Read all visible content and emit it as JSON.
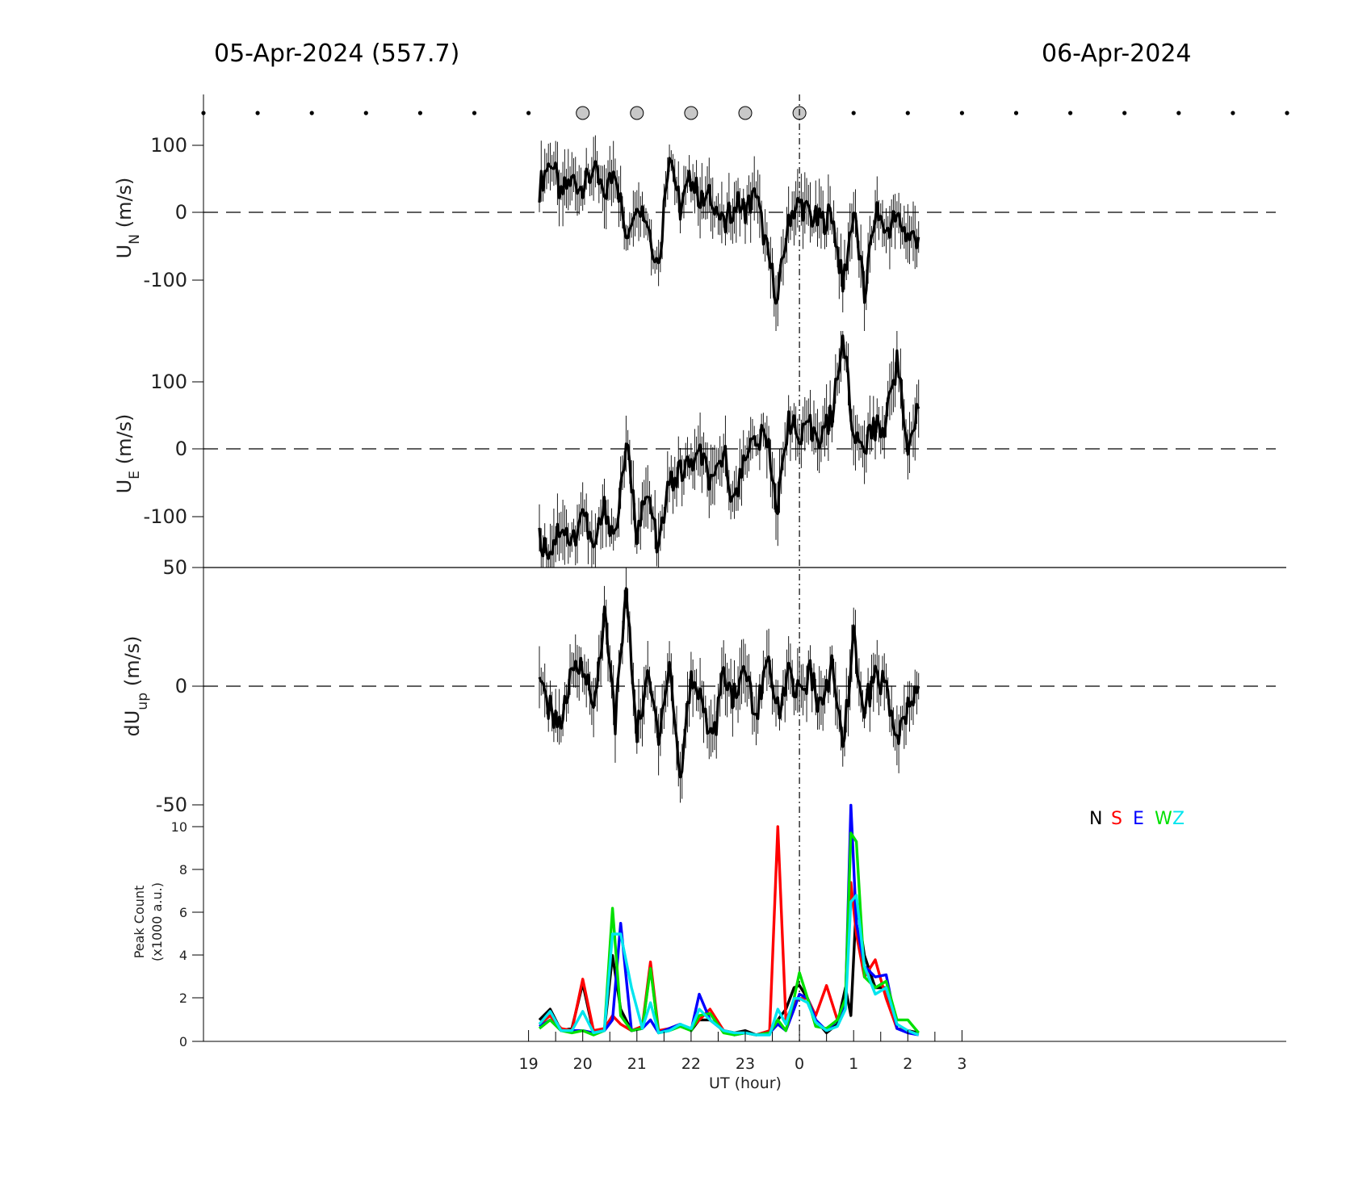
{
  "title_left": "05-Apr-2024 (557.7)",
  "title_right": "06-Apr-2024",
  "colors": {
    "N": "#000000",
    "S": "#ff0000",
    "E": "#0000ff",
    "W": "#00e000",
    "Z": "#00e5ee"
  },
  "chart_data": [
    {
      "type": "line",
      "ylabel": "U_N (m/s)",
      "ylim": [
        -175,
        165
      ],
      "yticks": [
        "100",
        "0",
        "-100"
      ],
      "x": [
        19.2,
        19.4,
        19.6,
        19.8,
        20.0,
        20.2,
        20.4,
        20.6,
        20.8,
        21.0,
        21.2,
        21.4,
        21.6,
        21.8,
        22.0,
        22.2,
        22.4,
        22.6,
        22.8,
        23.0,
        23.2,
        23.4,
        23.6,
        23.8,
        24.0,
        24.2,
        24.4,
        24.6,
        24.8,
        25.0,
        25.2,
        25.4,
        25.6,
        25.8,
        26.0,
        26.2
      ],
      "y": [
        30,
        75,
        20,
        45,
        30,
        55,
        20,
        60,
        -40,
        20,
        -20,
        -85,
        90,
        0,
        45,
        10,
        20,
        -30,
        10,
        0,
        20,
        -60,
        -130,
        -10,
        10,
        -10,
        -20,
        -5,
        -110,
        0,
        -125,
        0,
        -30,
        -10,
        -40,
        -40
      ]
    },
    {
      "type": "line",
      "ylabel": "U_E (m/s)",
      "ylim": [
        -175,
        175
      ],
      "yticks": [
        "100",
        "0",
        "-100"
      ],
      "x": [
        19.2,
        19.4,
        19.6,
        19.8,
        20.0,
        20.2,
        20.4,
        20.6,
        20.8,
        21.0,
        21.2,
        21.4,
        21.6,
        21.8,
        22.0,
        22.2,
        22.4,
        22.6,
        22.8,
        23.0,
        23.2,
        23.4,
        23.6,
        23.8,
        24.0,
        24.2,
        24.4,
        24.6,
        24.8,
        25.0,
        25.2,
        25.4,
        25.6,
        25.8,
        26.0,
        26.2
      ],
      "y": [
        -135,
        -150,
        -110,
        -140,
        -90,
        -150,
        -85,
        -130,
        10,
        -120,
        -70,
        -145,
        -50,
        -35,
        -20,
        -10,
        -60,
        0,
        -85,
        0,
        10,
        20,
        -90,
        50,
        10,
        30,
        20,
        50,
        170,
        20,
        10,
        30,
        40,
        130,
        10,
        60
      ]
    },
    {
      "type": "line",
      "ylabel": "dU_up (m/s)",
      "ylim": [
        -50,
        50
      ],
      "yticks": [
        "50",
        "0",
        "-50"
      ],
      "x": [
        19.2,
        19.4,
        19.6,
        19.8,
        20.0,
        20.2,
        20.4,
        20.6,
        20.8,
        21.0,
        21.2,
        21.4,
        21.6,
        21.8,
        22.0,
        22.2,
        22.4,
        22.6,
        22.8,
        23.0,
        23.2,
        23.4,
        23.6,
        23.8,
        24.0,
        24.2,
        24.4,
        24.6,
        24.8,
        25.0,
        25.2,
        25.4,
        25.6,
        25.8,
        26.0,
        26.2
      ],
      "y": [
        0,
        -10,
        -15,
        5,
        10,
        -10,
        30,
        -15,
        40,
        -20,
        5,
        -20,
        10,
        -40,
        5,
        -5,
        -25,
        5,
        -5,
        8,
        -15,
        15,
        -10,
        5,
        -5,
        5,
        -10,
        8,
        -25,
        20,
        -10,
        5,
        0,
        -25,
        -10,
        0
      ]
    },
    {
      "type": "line",
      "ylabel": "Peak Count",
      "ylabel2": "(x1000 a.u.)",
      "xlabel": "UT (hour)",
      "ylim": [
        0,
        11
      ],
      "yticks": [
        "10",
        "8",
        "6",
        "4",
        "2",
        "0"
      ],
      "xticks": [
        "19",
        "20",
        "21",
        "22",
        "23",
        "0",
        "1",
        "2",
        "3"
      ],
      "legend": [
        "N",
        "S",
        "E",
        "W",
        "Z"
      ],
      "x": [
        19.2,
        19.4,
        19.6,
        19.8,
        20.0,
        20.2,
        20.4,
        20.55,
        20.7,
        20.9,
        21.1,
        21.25,
        21.4,
        21.6,
        21.8,
        22.0,
        22.15,
        22.35,
        22.6,
        22.8,
        23.0,
        23.2,
        23.45,
        23.6,
        23.75,
        23.9,
        24.0,
        24.15,
        24.3,
        24.5,
        24.7,
        24.85,
        24.95,
        25.05,
        25.2,
        25.4,
        25.6,
        25.8,
        26.0,
        26.2
      ],
      "series": [
        {
          "name": "N",
          "values": [
            1.0,
            1.5,
            0.5,
            0.6,
            2.7,
            0.4,
            0.5,
            4.0,
            1.5,
            0.5,
            0.6,
            3.5,
            0.4,
            0.6,
            0.8,
            0.5,
            1.0,
            1.0,
            0.5,
            0.4,
            0.5,
            0.3,
            0.4,
            1.0,
            1.5,
            2.5,
            2.6,
            2.0,
            1.0,
            0.4,
            0.8,
            2.5,
            1.2,
            6.5,
            4.0,
            2.5,
            2.5,
            0.6,
            0.5,
            0.4
          ]
        },
        {
          "name": "S",
          "values": [
            0.8,
            1.2,
            0.6,
            0.5,
            2.9,
            0.5,
            0.6,
            1.2,
            0.8,
            0.5,
            0.7,
            3.7,
            0.5,
            0.6,
            0.7,
            0.6,
            1.0,
            1.5,
            0.5,
            0.4,
            0.4,
            0.3,
            0.5,
            10.0,
            1.0,
            1.8,
            2.0,
            2.0,
            1.2,
            2.6,
            1.0,
            1.8,
            7.4,
            5.0,
            3.0,
            3.8,
            2.0,
            0.6,
            0.5,
            0.3
          ]
        },
        {
          "name": "E",
          "values": [
            0.7,
            1.0,
            0.5,
            0.5,
            0.5,
            0.4,
            0.5,
            1.0,
            5.5,
            0.5,
            0.6,
            1.0,
            0.4,
            0.6,
            0.8,
            0.5,
            2.2,
            1.0,
            0.5,
            0.3,
            0.4,
            0.3,
            0.4,
            0.8,
            0.5,
            1.5,
            2.2,
            2.0,
            1.0,
            0.5,
            1.0,
            1.8,
            11.0,
            5.5,
            3.5,
            3.0,
            3.1,
            0.6,
            0.4,
            0.3
          ]
        },
        {
          "name": "W",
          "values": [
            0.6,
            1.0,
            0.5,
            0.4,
            0.5,
            0.3,
            0.5,
            6.2,
            1.2,
            0.5,
            0.6,
            3.4,
            0.4,
            0.5,
            0.7,
            0.5,
            1.2,
            1.3,
            0.4,
            0.3,
            0.4,
            0.3,
            0.4,
            1.0,
            0.5,
            2.0,
            3.2,
            2.0,
            0.7,
            0.6,
            1.0,
            2.0,
            9.7,
            9.3,
            3.0,
            2.5,
            2.8,
            1.0,
            1.0,
            0.4
          ]
        },
        {
          "name": "Z",
          "values": [
            0.8,
            1.4,
            0.5,
            0.5,
            1.4,
            0.4,
            0.5,
            5.0,
            5.0,
            2.5,
            0.6,
            1.8,
            0.4,
            0.5,
            0.8,
            0.6,
            1.5,
            1.0,
            0.5,
            0.4,
            0.4,
            0.3,
            0.3,
            1.5,
            0.8,
            2.0,
            2.0,
            1.8,
            0.9,
            0.5,
            0.7,
            1.5,
            6.5,
            6.8,
            3.5,
            2.2,
            2.5,
            0.8,
            0.5,
            0.3
          ]
        }
      ]
    }
  ],
  "observation_markers_hours": [
    20,
    21,
    22,
    23,
    24
  ]
}
